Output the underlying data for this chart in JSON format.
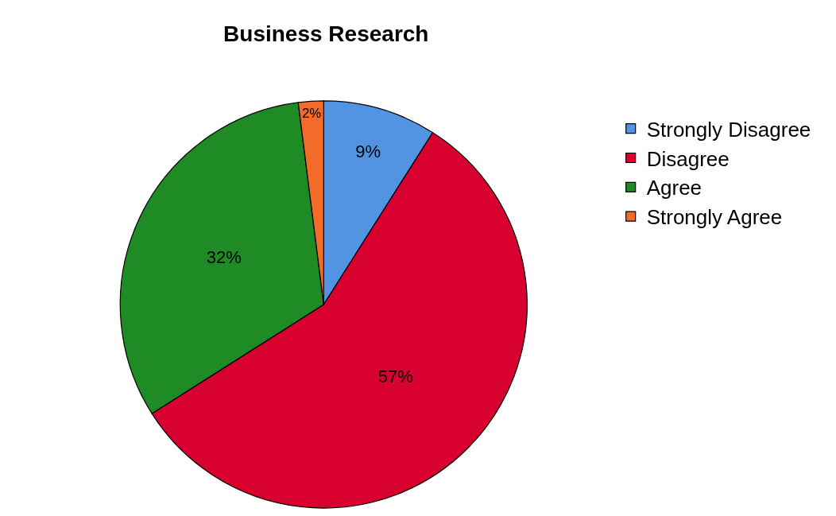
{
  "chart_data": {
    "type": "pie",
    "title": "Business Research",
    "categories": [
      "Strongly Disagree",
      "Disagree",
      "Agree",
      "Strongly Agree"
    ],
    "values": [
      9,
      57,
      32,
      2
    ],
    "colors": [
      "#5294e2",
      "#d7002f",
      "#1f8b24",
      "#f26b2a"
    ],
    "value_labels": [
      "9%",
      "57%",
      "32%",
      "2%"
    ],
    "legend": "top right"
  }
}
